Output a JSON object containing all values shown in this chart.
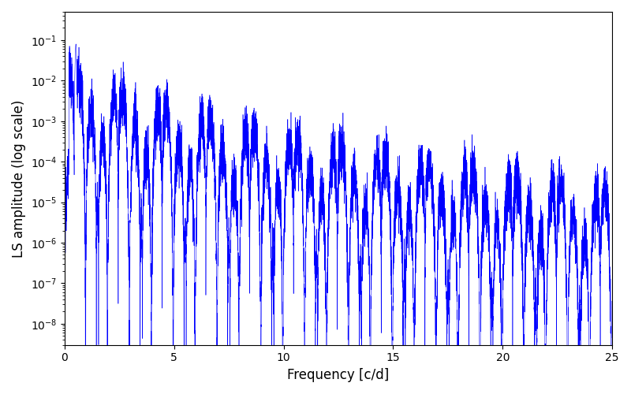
{
  "xlabel": "Frequency [c/d]",
  "ylabel": "LS amplitude (log scale)",
  "line_color": "#0000ff",
  "xlim": [
    0,
    25
  ],
  "ylim": [
    3e-09,
    0.5
  ],
  "figsize": [
    8.0,
    5.0
  ],
  "dpi": 100,
  "freq_max": 25.0,
  "n_points": 10000,
  "seed": 12345
}
